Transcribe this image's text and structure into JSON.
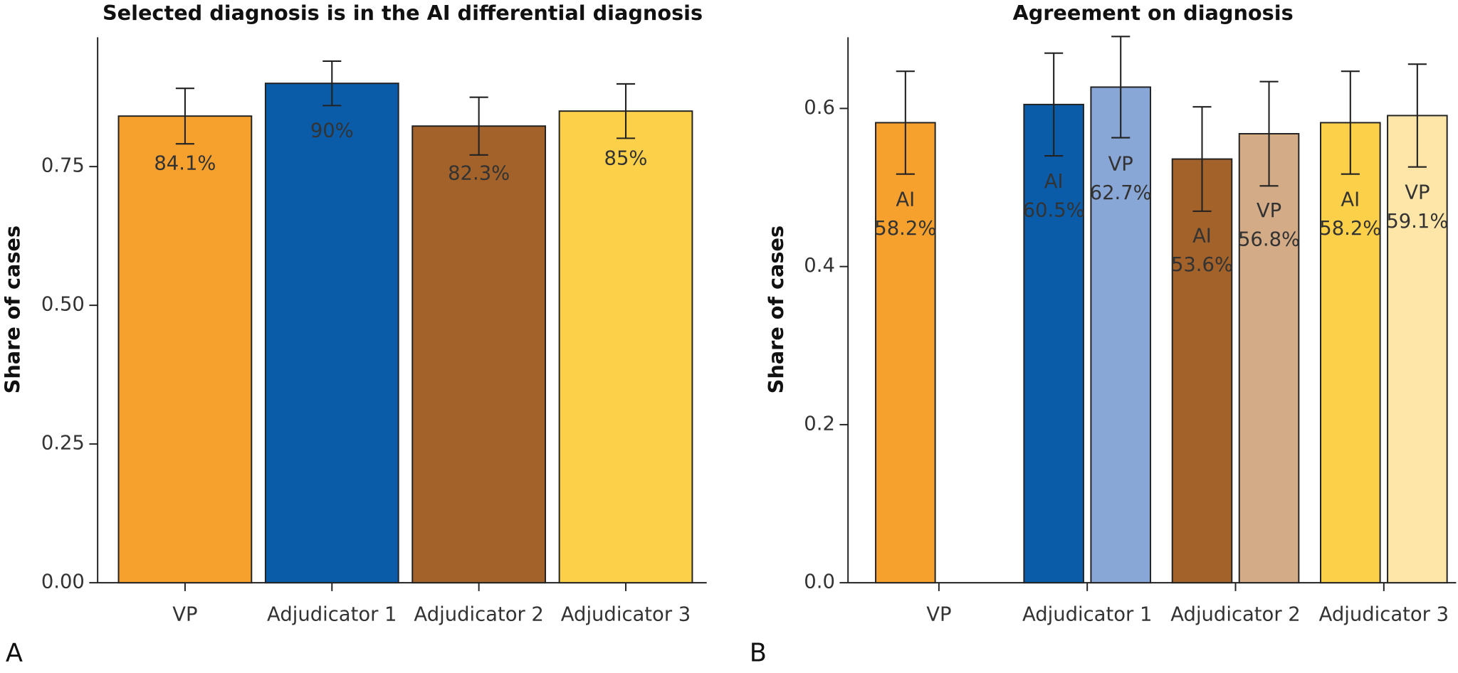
{
  "chart_data": [
    {
      "type": "bar",
      "panel": "A",
      "title": "Selected diagnosis is in the AI differential diagnosis",
      "y_label": "Share of cases",
      "categories": [
        "VP",
        "Adjudicator 1",
        "Adjudicator 2",
        "Adjudicator 3"
      ],
      "values": [
        0.841,
        0.9,
        0.823,
        0.85
      ],
      "value_labels": [
        "84.1%",
        "90%",
        "82.3%",
        "85%"
      ],
      "errors": [
        0.05,
        0.04,
        0.052,
        0.049
      ],
      "colors": [
        "#f6a02e",
        "#0a5ca8",
        "#a3622a",
        "#fdd04a"
      ],
      "label_colors": [
        "#333333",
        "#ffffff",
        "#ffffff",
        "#333333"
      ],
      "ylim": [
        0,
        0.983
      ],
      "yticks": [
        {
          "value": 0,
          "label": "0.00"
        },
        0.25,
        {
          "value": 0.5,
          "label": "0.50"
        },
        0.75
      ]
    },
    {
      "type": "grouped_bar",
      "panel": "B",
      "title": "Agreement on diagnosis",
      "y_label": "Share of cases",
      "categories": [
        "VP",
        "Adjudicator 1",
        "Adjudicator 2",
        "Adjudicator 3"
      ],
      "series": [
        {
          "name": "AI",
          "values": [
            0.582,
            0.605,
            0.536,
            0.582
          ],
          "value_labels": [
            "58.2%",
            "60.5%",
            "53.6%",
            "58.2%"
          ],
          "errors": [
            0.065,
            0.065,
            0.066,
            0.065
          ],
          "colors": [
            "#f6a02e",
            "#0a5ca8",
            "#a3622a",
            "#fdd04a"
          ],
          "label_colors": [
            "#333333",
            "#ffffff",
            "#ffffff",
            "#333333"
          ]
        },
        {
          "name": "VP",
          "values": [
            null,
            0.627,
            0.568,
            0.591
          ],
          "value_labels": [
            null,
            "62.7%",
            "56.8%",
            "59.1%"
          ],
          "errors": [
            null,
            0.064,
            0.066,
            0.065
          ],
          "colors": [
            null,
            "#88a6d6",
            "#d3ab86",
            "#fee6a8"
          ],
          "label_colors": [
            null,
            "#ffffff",
            "#ffffff",
            "#333333"
          ]
        }
      ],
      "ylim": [
        0,
        0.69
      ],
      "yticks": [
        {
          "value": 0,
          "label": "0.0"
        },
        0.2,
        0.4,
        0.6
      ]
    }
  ]
}
